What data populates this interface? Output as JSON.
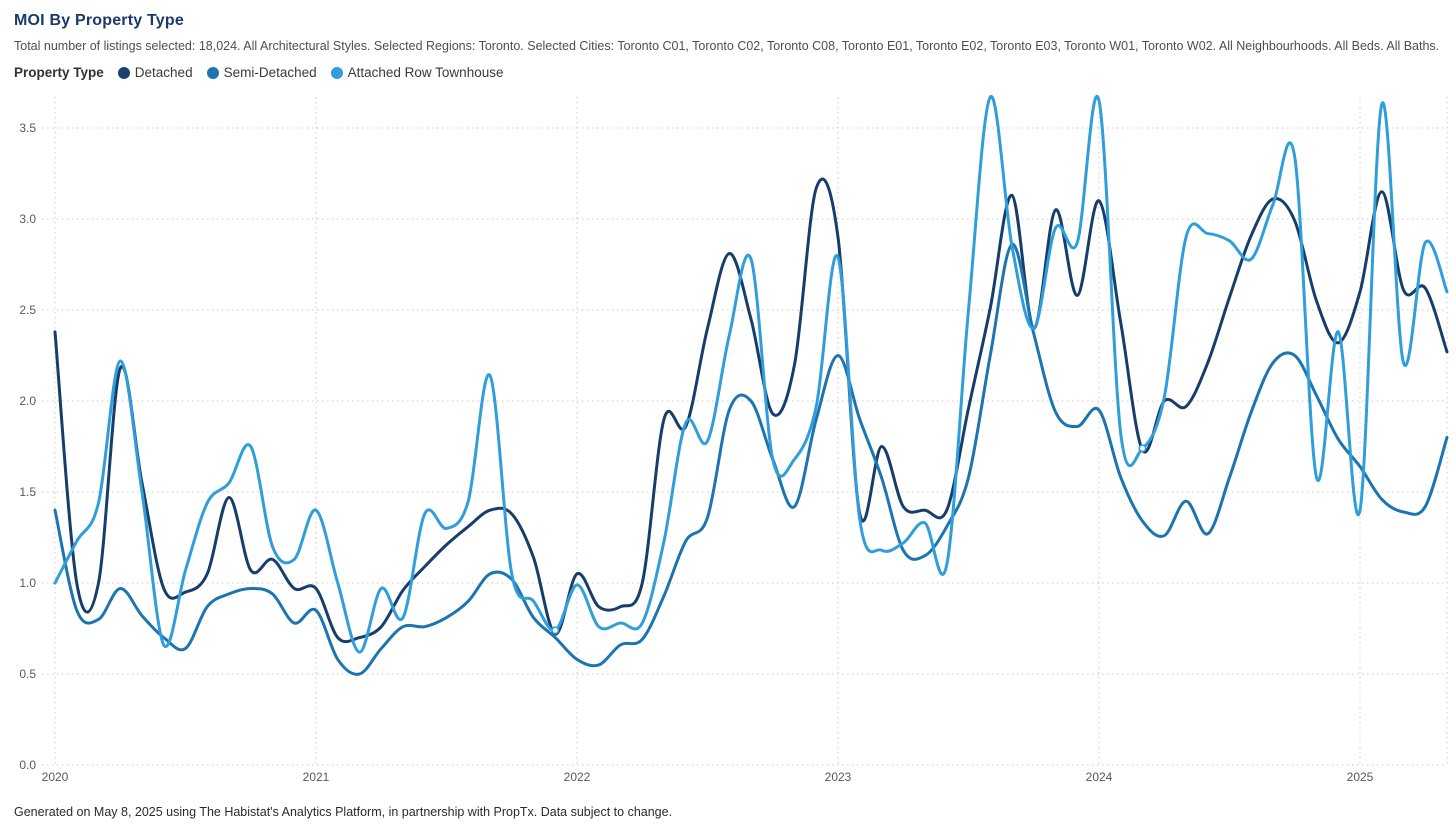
{
  "header": {
    "title": "MOI By Property Type",
    "subtitle": "Total number of listings selected: 18,024. All Architectural Styles. Selected Regions: Toronto. Selected Cities: Toronto C01, Toronto C02, Toronto C08, Toronto E01, Toronto E02, Toronto E03, Toronto W01, Toronto W02. All Neighbourhoods. All Beds. All Baths."
  },
  "legend": {
    "caption": "Property Type",
    "items": [
      {
        "label": "Detached",
        "color": "#1b3f6e"
      },
      {
        "label": "Semi-Detached",
        "color": "#1c74b0"
      },
      {
        "label": "Attached Row Townhouse",
        "color": "#2f9eda"
      }
    ]
  },
  "footer": {
    "text": "Generated on May 8, 2025 using The Habistat's Analytics Platform, in partnership with PropTx. Data subject to change."
  },
  "chart_data": {
    "type": "line",
    "title": "MOI By Property Type",
    "x_start_month": "2020-01",
    "x_end_month": "2025-05",
    "x_tick_labels": [
      "2020",
      "2021",
      "2022",
      "2023",
      "2024",
      "2025"
    ],
    "y_tick_labels": [
      "0.0",
      "0.5",
      "1.0",
      "1.5",
      "2.0",
      "2.5",
      "3.0",
      "3.5"
    ],
    "ylim": [
      0,
      3.67
    ],
    "grid": "dotted",
    "legend_position": "top",
    "axis_color": "#595959",
    "grid_color": "#c9c9c9",
    "series": [
      {
        "name": "Detached",
        "color": "#173e6a",
        "values": [
          2.38,
          1.0,
          1.0,
          2.18,
          1.55,
          0.97,
          0.95,
          1.05,
          1.47,
          1.07,
          1.13,
          0.97,
          0.97,
          0.7,
          0.7,
          0.76,
          0.96,
          1.09,
          1.21,
          1.31,
          1.4,
          1.38,
          1.14,
          0.72,
          1.05,
          0.87,
          0.87,
          1.0,
          1.9,
          1.86,
          2.4,
          2.81,
          2.45,
          1.93,
          2.2,
          3.17,
          2.9,
          1.38,
          1.75,
          1.42,
          1.4,
          1.4,
          1.96,
          2.51,
          3.13,
          2.4,
          3.05,
          2.58,
          3.1,
          2.43,
          1.73,
          2.0,
          1.97,
          2.21,
          2.57,
          2.91,
          3.11,
          2.99,
          2.55,
          2.32,
          2.6,
          3.15,
          2.61,
          2.62,
          2.27
        ]
      },
      {
        "name": "Semi-Detached",
        "color": "#1c74b0",
        "values": [
          1.4,
          0.85,
          0.8,
          0.97,
          0.82,
          0.7,
          0.64,
          0.87,
          0.94,
          0.97,
          0.94,
          0.78,
          0.85,
          0.58,
          0.5,
          0.64,
          0.76,
          0.76,
          0.81,
          0.9,
          1.05,
          1.02,
          0.81,
          0.7,
          0.58,
          0.55,
          0.66,
          0.69,
          0.93,
          1.23,
          1.36,
          1.95,
          2.0,
          1.68,
          1.42,
          1.9,
          2.25,
          1.9,
          1.58,
          1.18,
          1.15,
          1.31,
          1.58,
          2.25,
          2.86,
          2.37,
          1.94,
          1.86,
          1.95,
          1.58,
          1.34,
          1.26,
          1.45,
          1.27,
          1.58,
          1.94,
          2.21,
          2.25,
          2.03,
          1.79,
          1.64,
          1.46,
          1.39,
          1.42,
          1.8
        ]
      },
      {
        "name": "Attached Row Townhouse",
        "color": "#2f9eda",
        "values": [
          1.0,
          1.23,
          1.44,
          2.22,
          1.5,
          0.66,
          1.07,
          1.44,
          1.55,
          1.75,
          1.2,
          1.13,
          1.4,
          1.0,
          0.62,
          0.97,
          0.81,
          1.38,
          1.3,
          1.45,
          2.14,
          1.05,
          0.9,
          0.74,
          0.99,
          0.76,
          0.78,
          0.78,
          1.23,
          1.88,
          1.78,
          2.36,
          2.78,
          1.68,
          1.68,
          1.97,
          2.79,
          1.35,
          1.18,
          1.22,
          1.33,
          1.1,
          2.5,
          3.67,
          2.85,
          2.4,
          2.95,
          2.87,
          3.65,
          1.82,
          1.74,
          2.02,
          2.9,
          2.92,
          2.88,
          2.78,
          3.08,
          3.34,
          1.58,
          2.38,
          1.4,
          3.63,
          2.21,
          2.87,
          2.6
        ]
      }
    ],
    "point_markers": [
      {
        "series": "Attached Row Townhouse",
        "month": "2021-12",
        "value": 0.74
      },
      {
        "series": "Attached Row Townhouse",
        "month": "2024-03",
        "value": 1.74
      }
    ]
  }
}
